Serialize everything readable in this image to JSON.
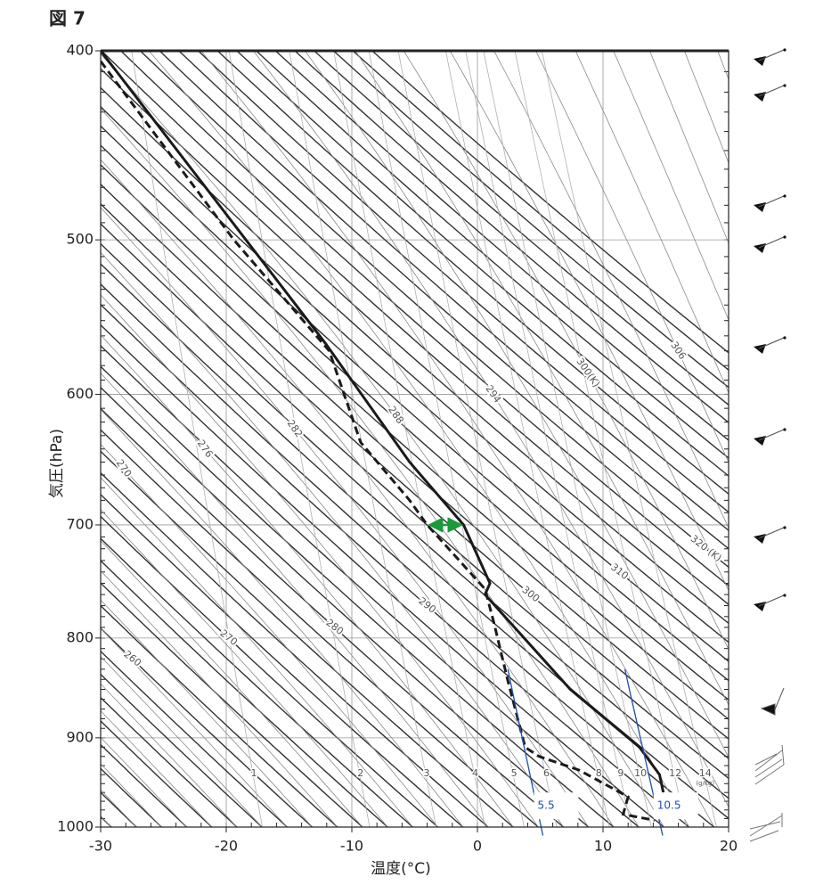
{
  "chart_data": {
    "type": "emagram",
    "title": "図 7",
    "x_label": "温度(°C)",
    "y_label": "気圧(hPa)",
    "xlim": [
      -30,
      20
    ],
    "xticks": [
      -30,
      -20,
      -10,
      0,
      10,
      20
    ],
    "ylim": [
      400,
      1000
    ],
    "yticks": [
      400,
      500,
      600,
      700,
      800,
      900,
      1000
    ],
    "log_y": true,
    "grid": true,
    "dry_adiabats": [
      260,
      270,
      280,
      290,
      300,
      310,
      {
        "value": 320,
        "label": "320 (K)"
      }
    ],
    "moist_adiabats": [
      270,
      276,
      282,
      288,
      294,
      {
        "value": 300,
        "label": "300(K)"
      },
      306
    ],
    "mixing_ratios": [
      1,
      2,
      3,
      4,
      5,
      6,
      8,
      9,
      10,
      12,
      14
    ],
    "mixing_ratio_unit": "(g/kg)",
    "highlight_mixing_ratios": [
      5.5,
      10.5
    ],
    "highlight_color": "#1f4fa8",
    "arrow_color": "#1a9a3a",
    "series": [
      {
        "style": "solid",
        "color": "#1a1a1a",
        "pressure": [
          400,
          565,
          650,
          700,
          750,
          760,
          850,
          910,
          940,
          960
        ],
        "values": [
          -30,
          -12.1,
          -5.4,
          -1.1,
          1.0,
          0.6,
          7.4,
          12.9,
          14.5,
          14.8
        ]
      },
      {
        "style": "dashed",
        "color": "#1a1a1a",
        "pressure": [
          405,
          500,
          570,
          635,
          680,
          700,
          755,
          785,
          840,
          910,
          920,
          935,
          965,
          985,
          992
        ],
        "values": [
          -30,
          -19.4,
          -11.8,
          -9.3,
          -5.4,
          -4.0,
          0.6,
          1.3,
          2.4,
          3.8,
          4.9,
          8.1,
          12.0,
          11.6,
          14.1
        ]
      }
    ]
  }
}
